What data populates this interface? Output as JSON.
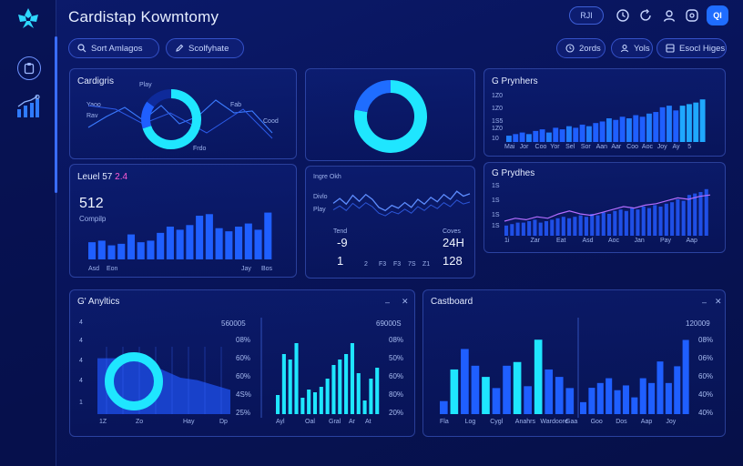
{
  "app": {
    "title": "Cardistap Kowmtomy"
  },
  "header": {
    "badge": "RJI",
    "avatar": "QI",
    "icons": [
      "clock-icon",
      "refresh-icon",
      "user-icon",
      "settings-icon"
    ]
  },
  "toolbar": {
    "search_label": "Sort Amlagos",
    "edit_label": "Scolfyhate",
    "date_label": "2ords",
    "view_label": "Yols",
    "filter_label": "Esocl Higes"
  },
  "colors": {
    "accent": "#1f6dff",
    "cyan": "#1fe0ff",
    "bar": "#1f5fff"
  },
  "panels": {
    "categories": {
      "title": "Cardigris",
      "labels": [
        "Play",
        "Yaoo",
        "Rav",
        "Fab",
        "Cood",
        "Frdo"
      ]
    },
    "center_top": {
      "title": ""
    },
    "level": {
      "title": "Leuel 57",
      "title_accent": "2.4",
      "value": "512",
      "subtitle": "Compilp",
      "xlabels": [
        "Asd",
        "Eon",
        "Jay",
        "Bos"
      ]
    },
    "trend": {
      "labels": [
        "Ingre Okh",
        "Divlo",
        "Play"
      ],
      "left_header": "Tend",
      "left_value": "-9",
      "right_header": "Coves",
      "right_value": "24H",
      "left_num": "1",
      "right_num": "128",
      "ticks": [
        "2",
        "F3",
        "F3",
        "7S",
        "Z1"
      ]
    },
    "payments": {
      "title": "G Prynhers",
      "ylabels": [
        "1Z0",
        "1Z0",
        "1S5",
        "1Z0",
        "10"
      ],
      "xlabels": [
        "Mai",
        "Jor",
        "Coo",
        "Yor",
        "Sel",
        "Sor",
        "Aan",
        "Aar",
        "Coo",
        "Aoc",
        "Joy",
        "Ay",
        "5"
      ]
    },
    "providers": {
      "title": "G Prydhes",
      "ylabels": [
        "1S",
        "1S",
        "1S",
        "1S"
      ],
      "xlabels": [
        "1i",
        "Zar",
        "Eat",
        "Asd",
        "Aoc",
        "Jan",
        "Pay",
        "Aap"
      ]
    },
    "analytics": {
      "title": "G' Anyltics",
      "left_scale": [
        "4",
        "4",
        "4",
        "4",
        "1"
      ],
      "left_xlabels": [
        "1Z",
        "Zo",
        "Hay",
        "Dp"
      ],
      "totals": [
        "560005",
        "69000S"
      ],
      "pcts": [
        "08%",
        "60%",
        "60%",
        "4S%",
        "25%"
      ],
      "pcts2": [
        "08%",
        "50%",
        "60%",
        "80%",
        "20%"
      ],
      "right_xlabels": [
        "Ayl",
        "Oal",
        "Gral",
        "Ar",
        "At"
      ]
    },
    "dashboard": {
      "title": "Castboard",
      "total": "120009",
      "pcts": [
        "08%",
        "06%",
        "60%",
        "40%",
        "40%"
      ],
      "xlabels": [
        "Fla",
        "Log",
        "Cygl",
        "Anahrs",
        "Wardoore",
        "Gaa",
        "Goo",
        "Dos",
        "Aap",
        "Joy"
      ]
    }
  },
  "chart_data": [
    {
      "type": "pie",
      "title": "Cardigris",
      "categories": [
        "Cyan",
        "Blue",
        "Navy"
      ],
      "values": [
        70,
        15,
        15
      ]
    },
    {
      "type": "pie",
      "title": "",
      "categories": [
        "Cyan",
        "Blue"
      ],
      "values": [
        78,
        22
      ]
    },
    {
      "type": "bar",
      "title": "Leuel 57",
      "values": [
        22,
        24,
        18,
        20,
        32,
        22,
        24,
        34,
        42,
        38,
        44,
        56,
        58,
        40,
        36,
        42,
        46,
        38,
        60
      ],
      "ylim": [
        0,
        70
      ]
    },
    {
      "type": "line",
      "title": "Trend",
      "values": [
        40,
        52,
        38,
        60,
        45,
        62,
        50,
        30,
        22,
        35,
        28,
        42,
        30,
        50,
        38,
        55,
        44,
        62,
        50,
        70,
        58,
        64
      ],
      "ylim": [
        0,
        100
      ]
    },
    {
      "type": "bar",
      "title": "G Prynhers",
      "values": [
        8,
        10,
        12,
        10,
        14,
        16,
        12,
        18,
        16,
        20,
        18,
        22,
        20,
        24,
        26,
        30,
        28,
        32,
        30,
        34,
        32,
        36,
        38,
        44,
        46,
        40,
        46,
        48,
        50,
        54
      ],
      "ylim": [
        0,
        60
      ]
    },
    {
      "type": "bar",
      "title": "G Prydhes",
      "values": [
        14,
        16,
        18,
        18,
        20,
        22,
        18,
        20,
        22,
        24,
        26,
        24,
        26,
        28,
        26,
        30,
        28,
        32,
        30,
        34,
        36,
        34,
        38,
        36,
        40,
        38,
        42,
        40,
        44,
        46,
        50,
        48,
        56,
        58,
        60,
        64
      ],
      "series_line": [
        20,
        24,
        22,
        26,
        24,
        30,
        34,
        30,
        28,
        32,
        36,
        40,
        38,
        42,
        44,
        48,
        52,
        50,
        54,
        56
      ],
      "ylim": [
        0,
        70
      ]
    },
    {
      "type": "area",
      "title": "G' Anyltics left",
      "values": [
        46,
        46,
        46,
        42,
        36,
        30,
        28,
        24,
        20
      ],
      "ylim": [
        0,
        60
      ]
    },
    {
      "type": "bar",
      "title": "G' Anyltics right",
      "values": [
        14,
        44,
        40,
        52,
        12,
        18,
        16,
        20,
        26,
        36,
        40,
        44,
        52,
        30,
        10,
        26,
        34
      ],
      "ylim": [
        0,
        60
      ]
    },
    {
      "type": "bar",
      "title": "Castboard left",
      "values": [
        14,
        48,
        70,
        52,
        40,
        28,
        52,
        56,
        30,
        80,
        48,
        40,
        28
      ],
      "ylim": [
        0,
        90
      ]
    },
    {
      "type": "bar",
      "title": "Castboard right",
      "values": [
        10,
        22,
        26,
        30,
        20,
        24,
        14,
        30,
        26,
        44,
        26,
        40,
        62
      ],
      "ylim": [
        0,
        70
      ]
    }
  ]
}
